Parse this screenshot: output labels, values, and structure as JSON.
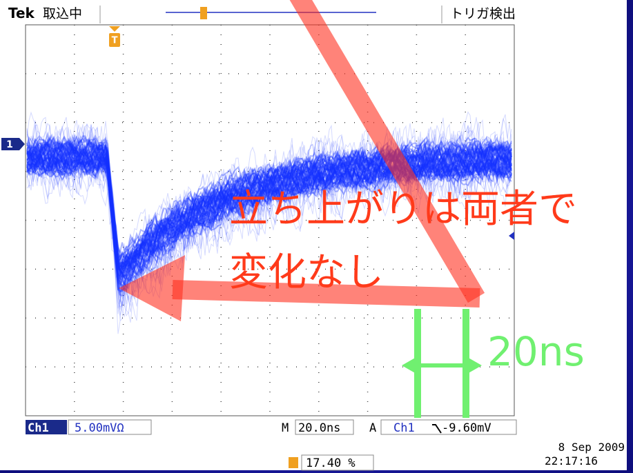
{
  "header": {
    "brand": "Tek",
    "status": "取込中",
    "trigger_status": "トリガ検出"
  },
  "markers": {
    "channel": "1",
    "trigger": "T"
  },
  "annotation": {
    "line1": "立ち上がりは両者で",
    "line2": "変化なし",
    "interval": "20ns"
  },
  "footer": {
    "channel": "Ch1",
    "scale": "5.00mVΩ",
    "time_prefix": "M",
    "time_scale": "20.0ns",
    "trigger_prefix": "A",
    "trigger_channel": "Ch1",
    "trigger_level": "-9.60mV",
    "date": "8 Sep  2009",
    "time": "22:17:16",
    "trigger_position": "17.40 %"
  }
}
